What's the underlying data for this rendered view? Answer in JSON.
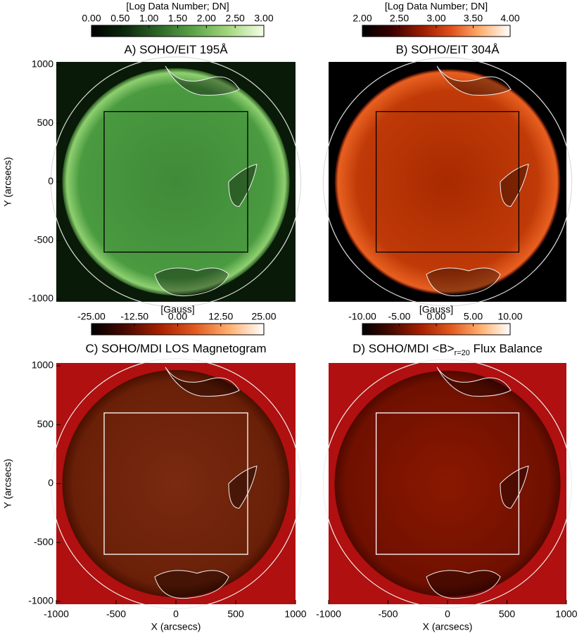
{
  "chart_data": [
    {
      "type": "image",
      "title": "A) SOHO/EIT 195Å",
      "colorbar": {
        "label": "[Log Data Number; DN]",
        "lim": [
          0,
          3
        ],
        "colors": [
          "#000000",
          "#0c2a0c",
          "#2f6a2a",
          "#5fa64a",
          "#a6d880",
          "#f4ffe8"
        ],
        "ticks": [
          {
            "value": 0,
            "label": "0.00"
          },
          {
            "value": 0.5,
            "label": "0.50"
          },
          {
            "value": 1,
            "label": "1.00"
          },
          {
            "value": 1.5,
            "label": "1.50"
          },
          {
            "value": 2,
            "label": "2.00"
          },
          {
            "value": 2.5,
            "label": "2.50"
          },
          {
            "value": 3,
            "label": "3.00"
          }
        ]
      },
      "xlim": [
        -1000,
        1000
      ],
      "ylim": [
        -1000,
        1000
      ],
      "yticks": [
        -1000,
        -500,
        0,
        500,
        1000
      ],
      "ylabel": "Y (arcsecs)",
      "box_x": [
        -600,
        600
      ],
      "box_y": [
        -600,
        600
      ],
      "box_color": "#000000"
    },
    {
      "type": "image",
      "title": "B) SOHO/EIT 304Å",
      "colorbar": {
        "label": "[Log Data Number; DN]",
        "lim": [
          2,
          4
        ],
        "colors": [
          "#000000",
          "#3a0000",
          "#9a1a00",
          "#e0501a",
          "#ffb070",
          "#ffffff"
        ],
        "ticks": [
          {
            "value": 2,
            "label": "2.00"
          },
          {
            "value": 2.5,
            "label": "2.50"
          },
          {
            "value": 3,
            "label": "3.00"
          },
          {
            "value": 3.5,
            "label": "3.50"
          },
          {
            "value": 4,
            "label": "4.00"
          }
        ]
      },
      "xlim": [
        -1000,
        1000
      ],
      "ylim": [
        -1000,
        1000
      ],
      "box_x": [
        -600,
        600
      ],
      "box_y": [
        -600,
        600
      ],
      "box_color": "#000000"
    },
    {
      "type": "image",
      "title": "C) SOHO/MDI LOS Magnetogram",
      "colorbar": {
        "label": "[Gauss]",
        "lim": [
          -25,
          25
        ],
        "colors": [
          "#000000",
          "#4a0a00",
          "#a82000",
          "#e05a20",
          "#ffb070",
          "#ffffff"
        ],
        "ticks": [
          {
            "value": -25,
            "label": "-25.00"
          },
          {
            "value": -12.5,
            "label": "-12.50"
          },
          {
            "value": 0,
            "label": "0.00"
          },
          {
            "value": 12.5,
            "label": "12.50"
          },
          {
            "value": 25,
            "label": "25.00"
          }
        ]
      },
      "xlim": [
        -1000,
        1000
      ],
      "ylim": [
        -1000,
        1000
      ],
      "xticks": [
        -1000,
        -500,
        0,
        500,
        1000
      ],
      "yticks": [
        -1000,
        -500,
        0,
        500,
        1000
      ],
      "xlabel": "X (arcsecs)",
      "ylabel": "Y (arcsecs)",
      "box_x": [
        -600,
        600
      ],
      "box_y": [
        -600,
        600
      ],
      "box_color": "#ffffff"
    },
    {
      "type": "image",
      "title": "D) SOHO/MDI <B>",
      "title_subscript": "r=20",
      "title_suffix": " Flux Balance",
      "colorbar": {
        "label": "[Gauss]",
        "lim": [
          -10,
          10
        ],
        "colors": [
          "#000000",
          "#4a0a00",
          "#a82000",
          "#e05a20",
          "#ffb070",
          "#ffffff"
        ],
        "ticks": [
          {
            "value": -10,
            "label": "-10.00"
          },
          {
            "value": -5,
            "label": "-5.00"
          },
          {
            "value": 0,
            "label": "0.00"
          },
          {
            "value": 5,
            "label": "5.00"
          },
          {
            "value": 10,
            "label": "10.00"
          }
        ]
      },
      "xlim": [
        -1000,
        1000
      ],
      "ylim": [
        -1000,
        1000
      ],
      "xticks": [
        -1000,
        -500,
        0,
        500,
        1000
      ],
      "xlabel": "X (arcsecs)",
      "box_x": [
        -600,
        600
      ],
      "box_y": [
        -600,
        600
      ],
      "box_color": "#ffffff"
    }
  ]
}
